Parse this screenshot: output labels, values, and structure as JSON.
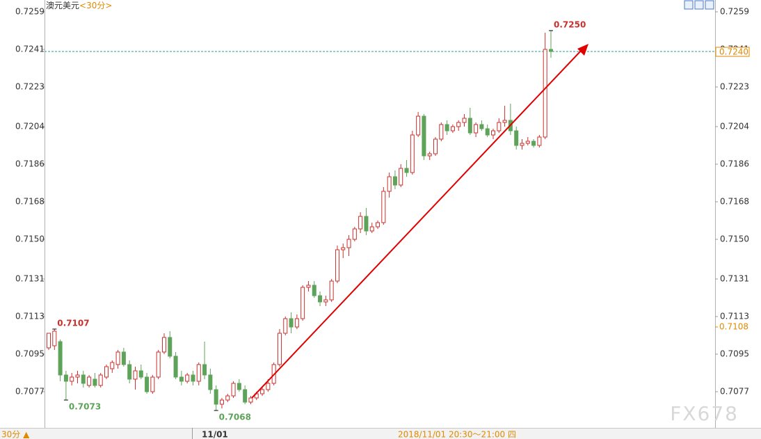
{
  "chart_data": {
    "type": "candlestick",
    "title": "澳元美元",
    "period": "<30分>",
    "ylim": [
      0.706,
      0.7265
    ],
    "yticks": [
      0.7259,
      0.7241,
      0.7223,
      0.7204,
      0.7186,
      0.7168,
      0.715,
      0.7131,
      0.7113,
      0.7095,
      0.7077
    ],
    "ytick_labels": [
      "0.7259",
      "0.7241",
      "0.7223",
      "0.7204",
      "0.7186",
      "0.7168",
      "0.7150",
      "0.7131",
      "0.7113",
      "0.7095",
      "0.7077"
    ],
    "up_color": "#c9302c",
    "down_color": "#5ea35a",
    "ohlc": [
      [
        0.7098,
        0.7105,
        0.7097,
        0.7105
      ],
      [
        0.7099,
        0.7107,
        0.7097,
        0.7106
      ],
      [
        0.7101,
        0.7102,
        0.7082,
        0.7085
      ],
      [
        0.7085,
        0.7087,
        0.7073,
        0.7082
      ],
      [
        0.7082,
        0.7086,
        0.708,
        0.7084
      ],
      [
        0.7084,
        0.7087,
        0.7081,
        0.7085
      ],
      [
        0.7085,
        0.7087,
        0.7079,
        0.7081
      ],
      [
        0.708,
        0.7085,
        0.7079,
        0.7084
      ],
      [
        0.7083,
        0.7086,
        0.7079,
        0.708
      ],
      [
        0.708,
        0.7086,
        0.7079,
        0.7085
      ],
      [
        0.7084,
        0.709,
        0.7083,
        0.7089
      ],
      [
        0.7088,
        0.7092,
        0.7086,
        0.7091
      ],
      [
        0.709,
        0.7097,
        0.7088,
        0.7096
      ],
      [
        0.7096,
        0.7098,
        0.7089,
        0.709
      ],
      [
        0.709,
        0.7092,
        0.7081,
        0.7083
      ],
      [
        0.7083,
        0.7089,
        0.7078,
        0.7087
      ],
      [
        0.7087,
        0.709,
        0.7083,
        0.7084
      ],
      [
        0.7084,
        0.7086,
        0.7076,
        0.7077
      ],
      [
        0.7077,
        0.7085,
        0.7076,
        0.7084
      ],
      [
        0.7084,
        0.7097,
        0.7083,
        0.7096
      ],
      [
        0.7096,
        0.7105,
        0.7095,
        0.7103
      ],
      [
        0.7103,
        0.7106,
        0.7093,
        0.7094
      ],
      [
        0.7094,
        0.7096,
        0.7083,
        0.7084
      ],
      [
        0.7084,
        0.7087,
        0.708,
        0.7082
      ],
      [
        0.7082,
        0.7086,
        0.7081,
        0.7085
      ],
      [
        0.7085,
        0.7087,
        0.708,
        0.7082
      ],
      [
        0.7082,
        0.7091,
        0.708,
        0.709
      ],
      [
        0.709,
        0.7101,
        0.7083,
        0.7085
      ],
      [
        0.7085,
        0.7088,
        0.7076,
        0.7078
      ],
      [
        0.7078,
        0.708,
        0.7068,
        0.7071
      ],
      [
        0.7071,
        0.7074,
        0.7069,
        0.7073
      ],
      [
        0.7073,
        0.7076,
        0.7072,
        0.7075
      ],
      [
        0.7075,
        0.7082,
        0.7074,
        0.7081
      ],
      [
        0.7081,
        0.7083,
        0.7077,
        0.7078
      ],
      [
        0.7078,
        0.708,
        0.7071,
        0.7072
      ],
      [
        0.7072,
        0.7075,
        0.7071,
        0.7074
      ],
      [
        0.7074,
        0.7077,
        0.7073,
        0.7076
      ],
      [
        0.7076,
        0.7079,
        0.7075,
        0.7078
      ],
      [
        0.7078,
        0.7083,
        0.7077,
        0.7081
      ],
      [
        0.7081,
        0.7091,
        0.708,
        0.709
      ],
      [
        0.709,
        0.7107,
        0.7089,
        0.7105
      ],
      [
        0.7105,
        0.7113,
        0.7104,
        0.7112
      ],
      [
        0.7112,
        0.7115,
        0.7105,
        0.7108
      ],
      [
        0.7108,
        0.7114,
        0.7107,
        0.7112
      ],
      [
        0.7112,
        0.7128,
        0.7111,
        0.7127
      ],
      [
        0.7127,
        0.713,
        0.7125,
        0.7128
      ],
      [
        0.7128,
        0.713,
        0.7122,
        0.7123
      ],
      [
        0.7123,
        0.7125,
        0.7118,
        0.712
      ],
      [
        0.712,
        0.7123,
        0.7118,
        0.7121
      ],
      [
        0.7121,
        0.7131,
        0.712,
        0.713
      ],
      [
        0.713,
        0.7147,
        0.7129,
        0.7145
      ],
      [
        0.7145,
        0.7148,
        0.7141,
        0.7146
      ],
      [
        0.7146,
        0.7152,
        0.7142,
        0.715
      ],
      [
        0.715,
        0.7156,
        0.7149,
        0.7155
      ],
      [
        0.7155,
        0.7163,
        0.7153,
        0.7161
      ],
      [
        0.7161,
        0.7165,
        0.7152,
        0.7154
      ],
      [
        0.7154,
        0.7158,
        0.7153,
        0.7156
      ],
      [
        0.7156,
        0.7159,
        0.7155,
        0.7158
      ],
      [
        0.7158,
        0.7175,
        0.7157,
        0.7173
      ],
      [
        0.7173,
        0.7182,
        0.717,
        0.718
      ],
      [
        0.718,
        0.7183,
        0.7174,
        0.7176
      ],
      [
        0.7176,
        0.7186,
        0.7175,
        0.7184
      ],
      [
        0.7184,
        0.7188,
        0.718,
        0.7182
      ],
      [
        0.7182,
        0.7202,
        0.7181,
        0.72
      ],
      [
        0.72,
        0.7211,
        0.7199,
        0.7209
      ],
      [
        0.7209,
        0.721,
        0.7188,
        0.719
      ],
      [
        0.719,
        0.7192,
        0.7188,
        0.7191
      ],
      [
        0.7191,
        0.7199,
        0.719,
        0.7198
      ],
      [
        0.7198,
        0.7206,
        0.7197,
        0.7205
      ],
      [
        0.7205,
        0.7207,
        0.72,
        0.7202
      ],
      [
        0.7202,
        0.7205,
        0.7201,
        0.7204
      ],
      [
        0.7204,
        0.7207,
        0.7202,
        0.7206
      ],
      [
        0.7206,
        0.721,
        0.7204,
        0.7208
      ],
      [
        0.7208,
        0.7213,
        0.72,
        0.7201
      ],
      [
        0.7201,
        0.7206,
        0.7199,
        0.7205
      ],
      [
        0.7205,
        0.7207,
        0.7202,
        0.7203
      ],
      [
        0.7203,
        0.7205,
        0.7199,
        0.72
      ],
      [
        0.72,
        0.7203,
        0.7198,
        0.7202
      ],
      [
        0.7202,
        0.7208,
        0.7201,
        0.7206
      ],
      [
        0.7206,
        0.7214,
        0.7204,
        0.7207
      ],
      [
        0.7207,
        0.7215,
        0.72,
        0.7202
      ],
      [
        0.7202,
        0.7204,
        0.7193,
        0.7195
      ],
      [
        0.7195,
        0.7198,
        0.7193,
        0.7196
      ],
      [
        0.7196,
        0.7199,
        0.7195,
        0.7197
      ],
      [
        0.7197,
        0.7198,
        0.7194,
        0.7195
      ],
      [
        0.7195,
        0.72,
        0.7194,
        0.7199
      ],
      [
        0.7199,
        0.7249,
        0.7198,
        0.7241
      ],
      [
        0.7241,
        0.725,
        0.7237,
        0.724
      ]
    ],
    "annotations": [
      {
        "value": 0.7107,
        "label": "0.7107"
      },
      {
        "value": 0.7073,
        "label": "0.7073"
      },
      {
        "value": 0.7068,
        "label": "0.7068"
      },
      {
        "value": 0.725,
        "label": "0.7250"
      }
    ],
    "last_price": {
      "value": 0.724,
      "label": "0.7240"
    },
    "ref_price": {
      "value": 0.7108,
      "label": "0.7108"
    },
    "footer": {
      "period_button": "30分 ▲",
      "date_marker": "11/01",
      "time_range": "2018/11/01 20:30～21:00 四"
    },
    "watermark": "FX678"
  }
}
